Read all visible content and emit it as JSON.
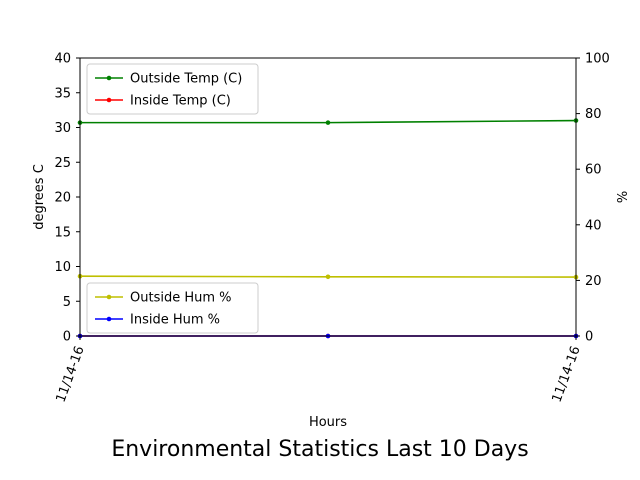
{
  "chart_data": {
    "type": "line",
    "title": "Environmental Statistics Last 10 Days",
    "xlabel": "Hours",
    "ylabel_left": "degrees C",
    "ylabel_right": "%",
    "x_tick_labels": [
      "11/14-16",
      "11/14-16"
    ],
    "x": [
      0,
      1,
      2
    ],
    "ylim_left": [
      0,
      40
    ],
    "ylim_right": [
      0,
      100
    ],
    "yticks_left": [
      0,
      5,
      10,
      15,
      20,
      25,
      30,
      35,
      40
    ],
    "yticks_right": [
      0,
      20,
      40,
      60,
      80,
      100
    ],
    "grid": false,
    "series_left": [
      {
        "name": "Outside Temp (C)",
        "color": "#008000",
        "values": [
          30.7,
          30.7,
          31.0
        ]
      },
      {
        "name": "Inside Temp (C)",
        "color": "#ff0000",
        "values": [
          0,
          0,
          0
        ]
      }
    ],
    "series_right": [
      {
        "name": "Outside Hum %",
        "color": "#bfbf00",
        "values": [
          21.5,
          21.3,
          21.2
        ]
      },
      {
        "name": "Inside Hum %",
        "color": "#0000ff",
        "values": [
          0,
          0,
          0
        ]
      }
    ],
    "legend_left_placement": "upper-left",
    "legend_right_placement": "lower-left"
  }
}
